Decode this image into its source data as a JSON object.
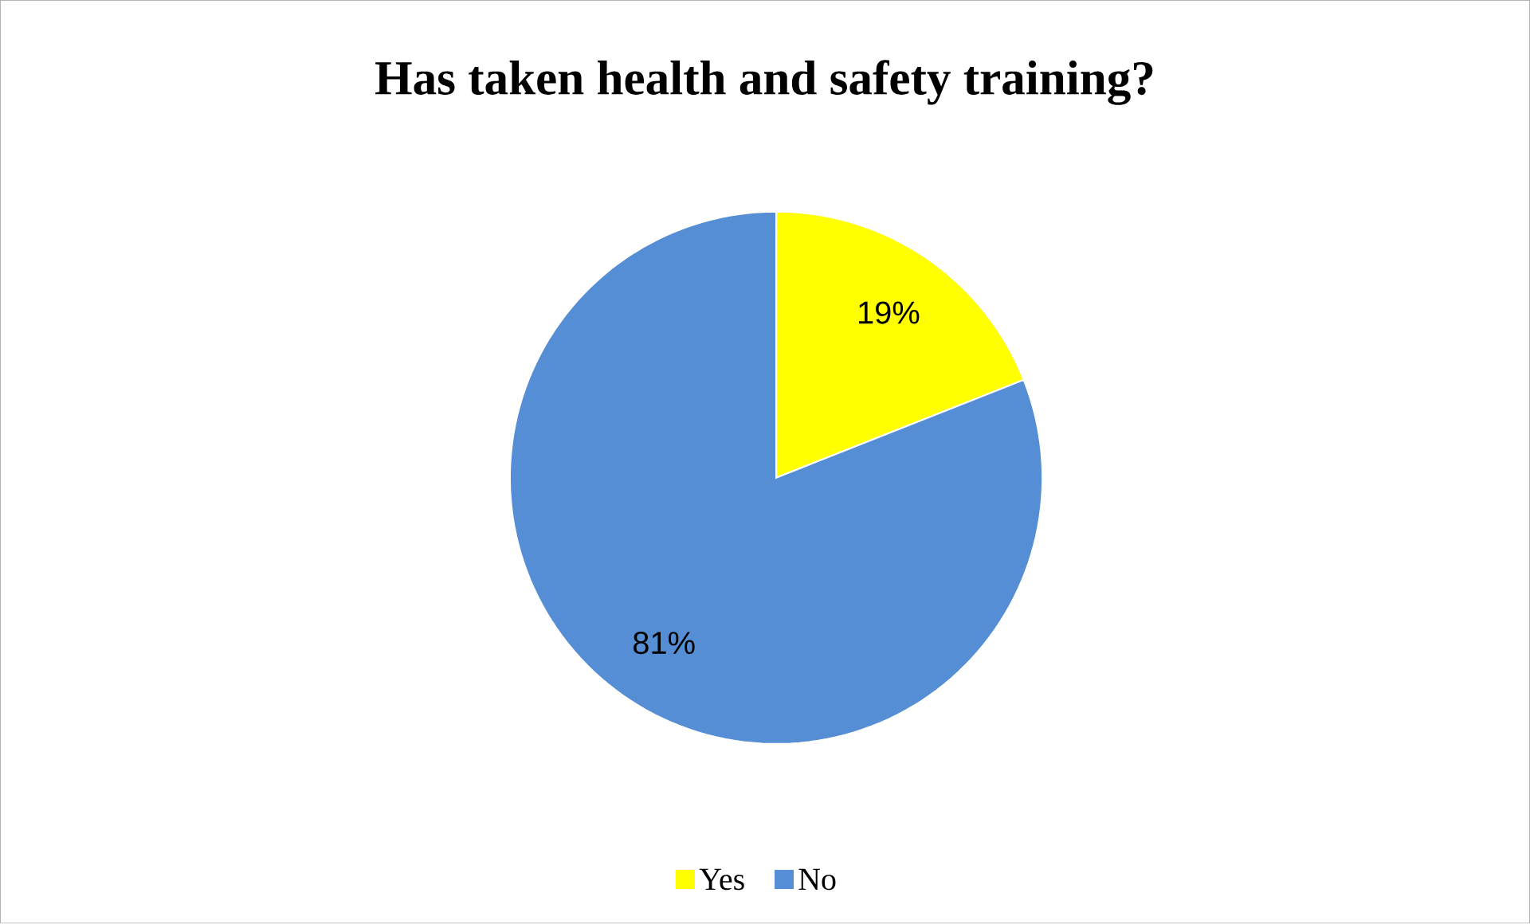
{
  "chart_data": {
    "type": "pie",
    "title": "Has taken health and safety training?",
    "categories": [
      "Yes",
      "No"
    ],
    "values": [
      19,
      81
    ],
    "colors": [
      "#ffff00",
      "#558ed5"
    ],
    "value_labels": [
      "19%",
      "81%"
    ],
    "legend": "bottom"
  }
}
